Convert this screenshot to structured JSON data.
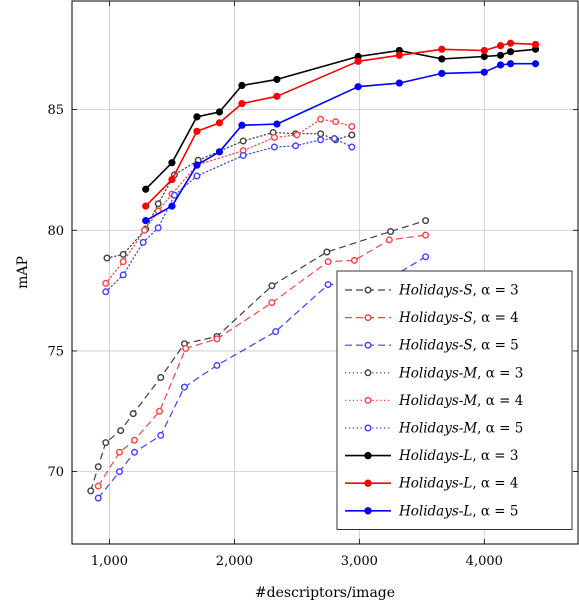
{
  "chart_data": {
    "type": "line",
    "title": "",
    "xlabel": "#descriptors/image",
    "ylabel": "mAP",
    "xlim": [
      700,
      4750
    ],
    "ylim": [
      67,
      89.5
    ],
    "xticks": [
      1000,
      2000,
      3000,
      4000
    ],
    "xtick_labels": [
      "1,000",
      "2,000",
      "3,000",
      "4,000"
    ],
    "yticks": [
      70,
      75,
      80,
      85
    ],
    "ytick_labels": [
      "70",
      "75",
      "80",
      "85"
    ],
    "grid": true,
    "legend_position": "bottom-right",
    "series": [
      {
        "name": "Holidays-S, α = 3",
        "name_italic": "Holidays-S",
        "name_rest": ", α = 3",
        "color": "#404040",
        "dash": "dashed",
        "marker": "open-circle",
        "x": [
          850,
          910,
          970,
          1090,
          1190,
          1410,
          1600,
          1860,
          2300,
          2740,
          3250,
          3530
        ],
        "y": [
          69.2,
          70.2,
          71.2,
          71.7,
          72.4,
          73.9,
          75.3,
          75.6,
          77.7,
          79.1,
          79.95,
          80.4
        ]
      },
      {
        "name": "Holidays-S, α = 4",
        "name_italic": "Holidays-S",
        "name_rest": ", α = 4",
        "color": "#ff4040",
        "dash": "dashed",
        "marker": "open-circle",
        "x": [
          910,
          1080,
          1200,
          1400,
          1610,
          1860,
          2300,
          2750,
          2960,
          3240,
          3530
        ],
        "y": [
          69.4,
          70.8,
          71.3,
          72.5,
          75.1,
          75.5,
          77.0,
          78.7,
          78.75,
          79.6,
          79.8
        ]
      },
      {
        "name": "Holidays-S, α = 5",
        "name_italic": "Holidays-S",
        "name_rest": ", α = 5",
        "color": "#4040ff",
        "dash": "dashed",
        "marker": "open-circle",
        "x": [
          910,
          1080,
          1200,
          1410,
          1600,
          1860,
          2330,
          2750,
          2960,
          3240,
          3530
        ],
        "y": [
          68.9,
          70.0,
          70.8,
          71.5,
          73.5,
          74.4,
          75.8,
          77.75,
          77.8,
          78.0,
          78.9
        ]
      },
      {
        "name": "Holidays-M, α = 3",
        "name_italic": "Holidays-M",
        "name_rest": ", α = 3",
        "color": "#404040",
        "dash": "dotted",
        "marker": "open-circle",
        "x": [
          980,
          1110,
          1290,
          1390,
          1520,
          1710,
          2070,
          2310,
          2490,
          2690,
          2810,
          2940
        ],
        "y": [
          78.85,
          79.0,
          80.05,
          81.1,
          82.3,
          82.9,
          83.7,
          84.05,
          84.0,
          84.0,
          83.75,
          83.95
        ]
      },
      {
        "name": "Holidays-M, α = 4",
        "name_italic": "Holidays-M",
        "name_rest": ", α = 4",
        "color": "#ff4040",
        "dash": "dotted",
        "marker": "open-circle",
        "x": [
          970,
          1110,
          1280,
          1390,
          1500,
          1700,
          2070,
          2320,
          2500,
          2690,
          2810,
          2940
        ],
        "y": [
          77.8,
          78.7,
          80.0,
          80.8,
          81.5,
          82.7,
          83.3,
          83.85,
          83.95,
          84.6,
          84.5,
          84.3
        ]
      },
      {
        "name": "Holidays-M, α = 5",
        "name_italic": "Holidays-M",
        "name_rest": ", α = 5",
        "color": "#4040ff",
        "dash": "dotted",
        "marker": "open-circle",
        "x": [
          970,
          1110,
          1270,
          1390,
          1520,
          1700,
          2070,
          2320,
          2490,
          2690,
          2800,
          2940
        ],
        "y": [
          77.45,
          78.15,
          79.5,
          80.1,
          81.45,
          82.25,
          83.1,
          83.45,
          83.5,
          83.75,
          83.8,
          83.45
        ]
      },
      {
        "name": "Holidays-L, α = 3",
        "name_italic": "Holidays-L",
        "name_rest": ", α = 3",
        "color": "#000000",
        "dash": "solid",
        "marker": "filled-circle",
        "x": [
          1290,
          1500,
          1700,
          1880,
          2060,
          2340,
          2990,
          3320,
          3660,
          4000,
          4130,
          4210,
          4410
        ],
        "y": [
          81.7,
          82.8,
          84.7,
          84.9,
          86.0,
          86.25,
          87.2,
          87.45,
          87.1,
          87.2,
          87.25,
          87.4,
          87.5
        ]
      },
      {
        "name": "Holidays-L, α = 4",
        "name_italic": "Holidays-L",
        "name_rest": ", α = 4",
        "color": "#ff0000",
        "dash": "solid",
        "marker": "filled-circle",
        "x": [
          1290,
          1500,
          1700,
          1880,
          2060,
          2340,
          2990,
          3320,
          3660,
          4000,
          4130,
          4210,
          4410
        ],
        "y": [
          81.0,
          82.1,
          84.1,
          84.45,
          85.25,
          85.55,
          87.0,
          87.25,
          87.5,
          87.45,
          87.65,
          87.75,
          87.7
        ]
      },
      {
        "name": "Holidays-L, α = 5",
        "name_italic": "Holidays-L",
        "name_rest": ", α = 5",
        "color": "#0000ff",
        "dash": "solid",
        "marker": "filled-circle",
        "x": [
          1290,
          1500,
          1700,
          1880,
          2060,
          2340,
          2990,
          3320,
          3660,
          4000,
          4130,
          4210,
          4410
        ],
        "y": [
          80.4,
          81.0,
          82.7,
          83.25,
          84.35,
          84.4,
          85.95,
          86.1,
          86.5,
          86.55,
          86.85,
          86.9,
          86.9
        ]
      }
    ]
  }
}
